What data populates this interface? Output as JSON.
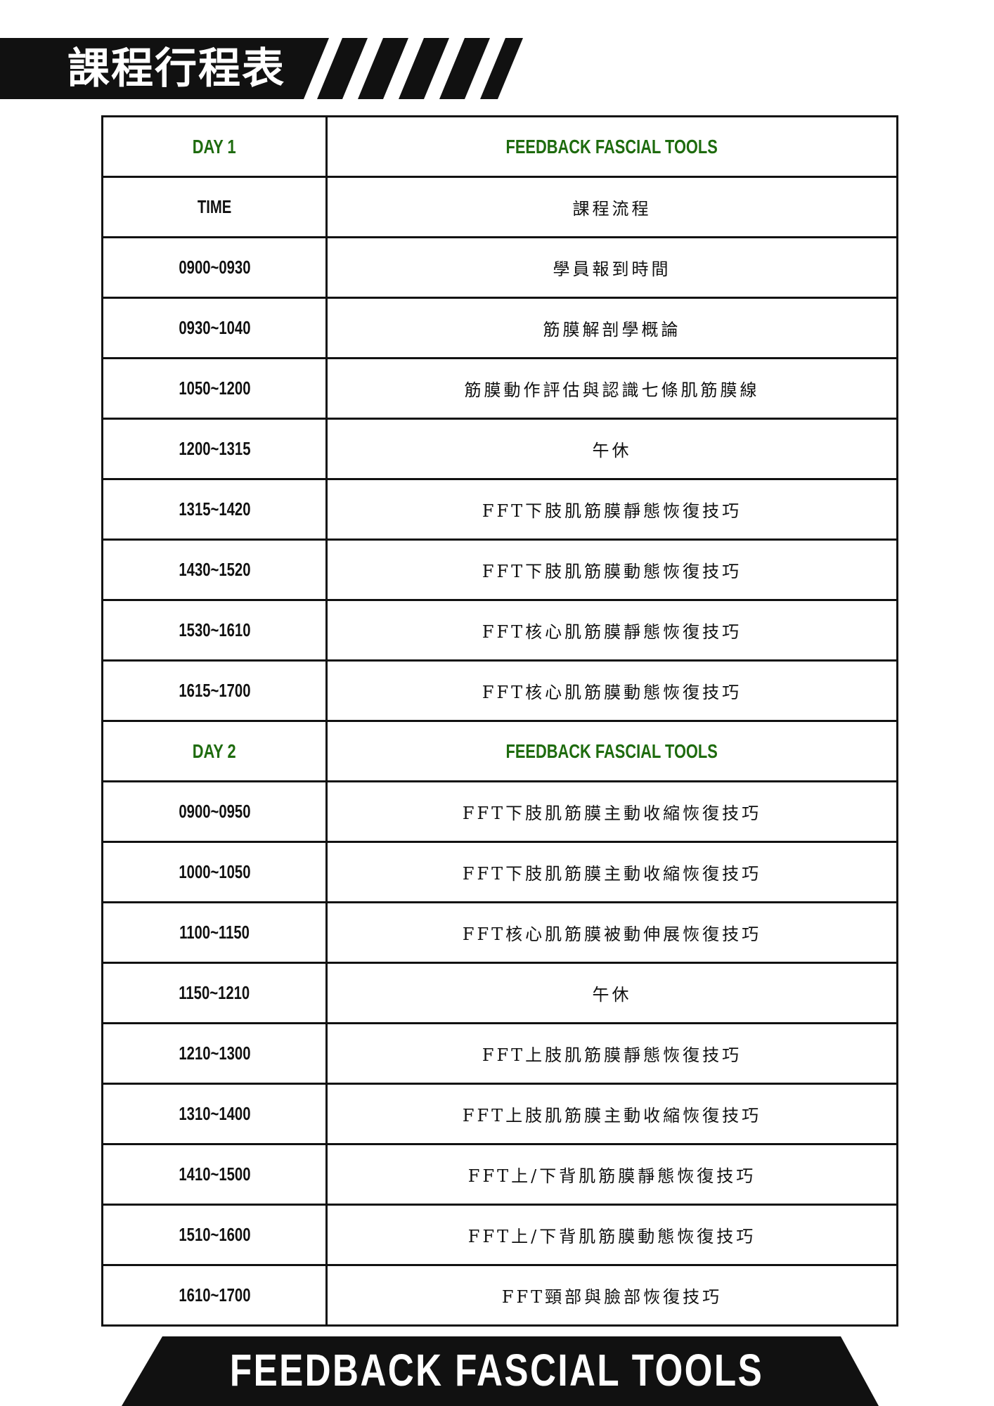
{
  "title": "課程行程表",
  "footer": "FEEDBACK FASCIAL TOOLS",
  "colors": {
    "accent_green": "#1e6b0e",
    "bar_black": "#111111"
  },
  "rows": [
    {
      "time": "DAY 1",
      "content": "FEEDBACK FASCIAL TOOLS",
      "header": true
    },
    {
      "time": "TIME",
      "content": "課程流程"
    },
    {
      "time": "0900~0930",
      "content": "學員報到時間"
    },
    {
      "time": "0930~1040",
      "content": "筋膜解剖學概論"
    },
    {
      "time": "1050~1200",
      "content": "筋膜動作評估與認識七條肌筋膜線"
    },
    {
      "time": "1200~1315",
      "content": "午休"
    },
    {
      "time": "1315~1420",
      "content": "FFT下肢肌筋膜靜態恢復技巧"
    },
    {
      "time": "1430~1520",
      "content": "FFT下肢肌筋膜動態恢復技巧"
    },
    {
      "time": "1530~1610",
      "content": "FFT核心肌筋膜靜態恢復技巧"
    },
    {
      "time": "1615~1700",
      "content": "FFT核心肌筋膜動態恢復技巧"
    },
    {
      "time": "DAY 2",
      "content": "FEEDBACK FASCIAL TOOLS",
      "header": true
    },
    {
      "time": "0900~0950",
      "content": "FFT下肢肌筋膜主動收縮恢復技巧"
    },
    {
      "time": "1000~1050",
      "content": "FFT下肢肌筋膜主動收縮恢復技巧"
    },
    {
      "time": "1100~1150",
      "content": "FFT核心肌筋膜被動伸展恢復技巧"
    },
    {
      "time": "1150~1210",
      "content": "午休"
    },
    {
      "time": "1210~1300",
      "content": "FFT上肢肌筋膜靜態恢復技巧"
    },
    {
      "time": "1310~1400",
      "content": "FFT上肢肌筋膜主動收縮恢復技巧"
    },
    {
      "time": "1410~1500",
      "content": "FFT上/下背肌筋膜靜態恢復技巧"
    },
    {
      "time": "1510~1600",
      "content": "FFT上/下背肌筋膜動態恢復技巧"
    },
    {
      "time": "1610~1700",
      "content": "FFT頸部與臉部恢復技巧"
    }
  ]
}
